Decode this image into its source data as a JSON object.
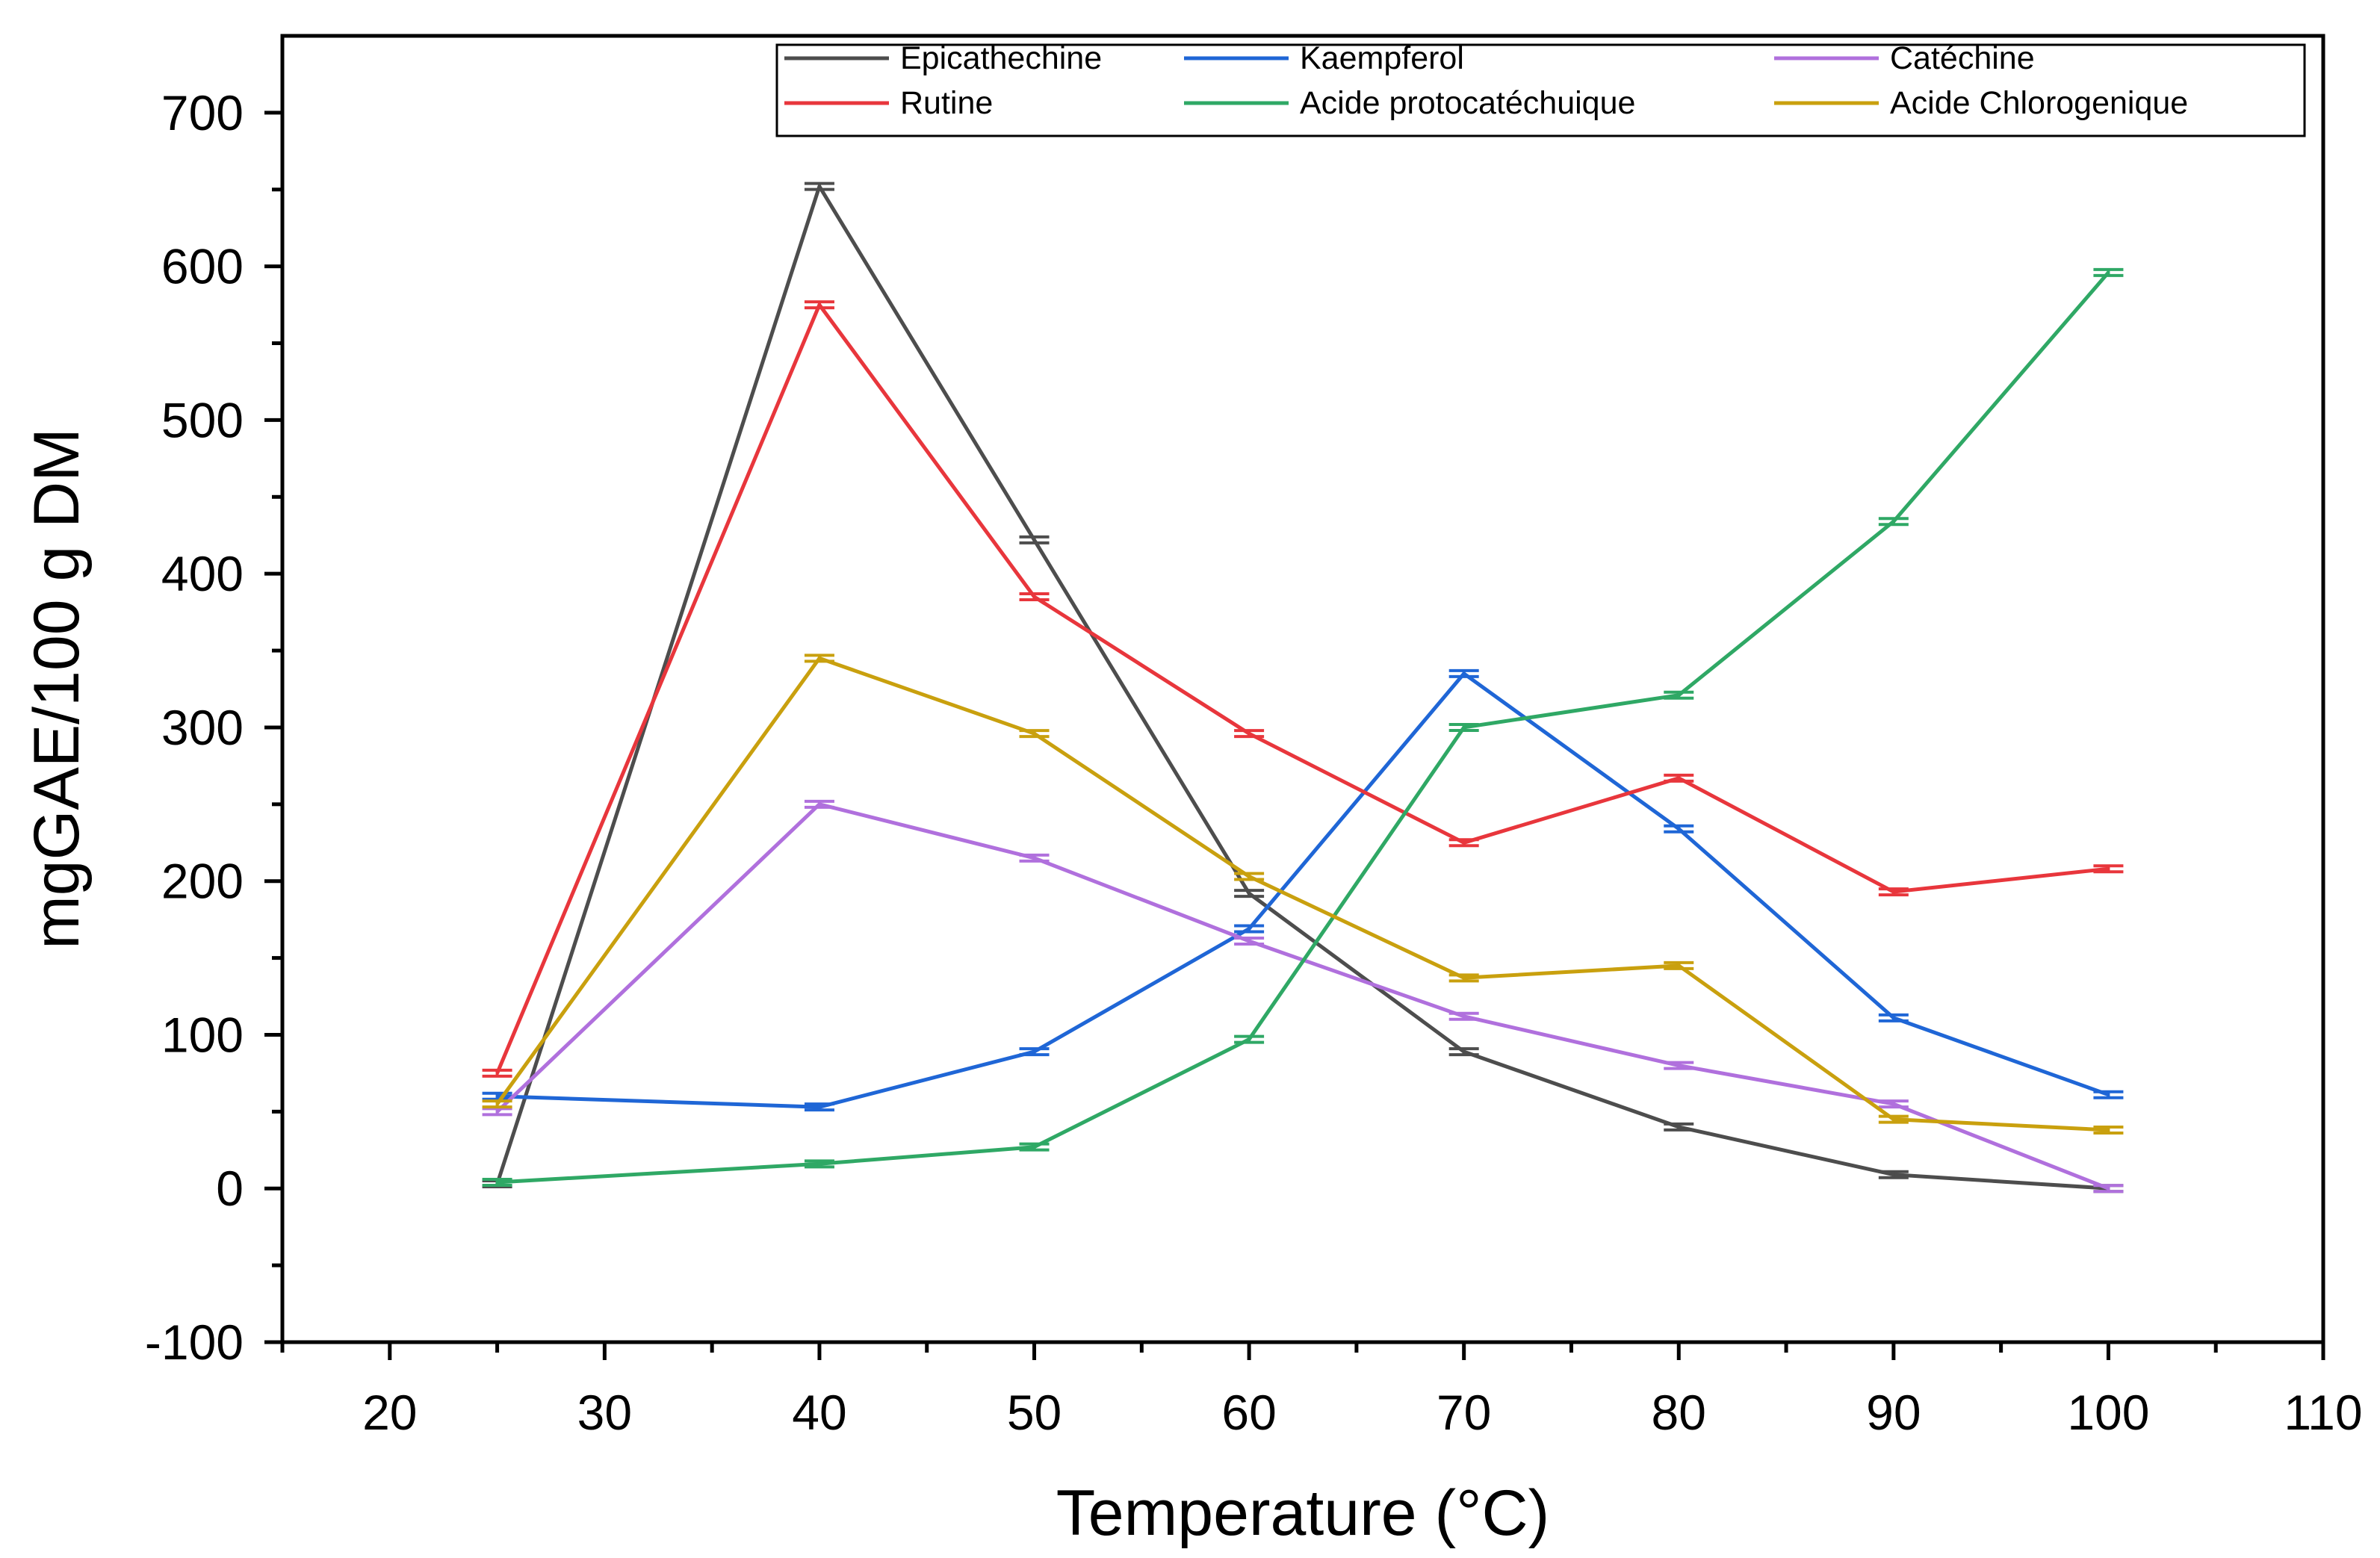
{
  "chart_data": {
    "type": "line",
    "title": "",
    "xlabel": "Temperature (°C)",
    "ylabel": "mgGAE/100 g DM",
    "xlim": [
      15,
      110
    ],
    "ylim": [
      -100,
      750
    ],
    "xticks": [
      20,
      30,
      40,
      50,
      60,
      70,
      80,
      90,
      100,
      110
    ],
    "yticks": [
      -100,
      0,
      100,
      200,
      300,
      400,
      500,
      600,
      700
    ],
    "xtick_labels": [
      "20",
      "30",
      "40",
      "50",
      "60",
      "70",
      "80",
      "90",
      "100",
      "110"
    ],
    "ytick_labels": [
      "-100",
      "0",
      "100",
      "200",
      "300",
      "400",
      "500",
      "600",
      "700"
    ],
    "x": [
      25,
      40,
      50,
      60,
      70,
      80,
      90,
      100
    ],
    "grid": false,
    "legend_position": "top-right",
    "series": [
      {
        "name": "Epicathechine",
        "color": "#4d4d4d",
        "values": [
          3,
          652,
          422,
          192,
          89,
          40,
          9,
          0
        ]
      },
      {
        "name": "Kaempferol",
        "color": "#1f66d6",
        "values": [
          60,
          53,
          89,
          169,
          335,
          234,
          111,
          61
        ]
      },
      {
        "name": "Catéchine",
        "color": "#b070dd",
        "values": [
          50,
          250,
          215,
          161,
          112,
          80,
          55,
          0
        ]
      },
      {
        "name": "Rutine",
        "color": "#e8363c",
        "values": [
          75,
          575,
          385,
          296,
          225,
          267,
          193,
          208
        ]
      },
      {
        "name": "Acide protocatéchuique",
        "color": "#2fa865",
        "values": [
          4,
          16,
          27,
          97,
          300,
          321,
          434,
          596
        ]
      },
      {
        "name": "Acide Chlorogenique",
        "color": "#c9a00e",
        "values": [
          55,
          345,
          296,
          203,
          137,
          145,
          45,
          38
        ]
      }
    ]
  }
}
